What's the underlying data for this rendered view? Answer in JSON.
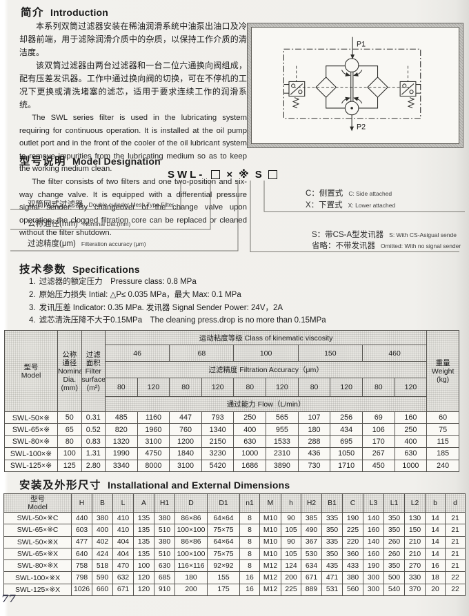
{
  "page": {
    "number": "77"
  },
  "intro": {
    "title_zh": "简介",
    "title_en": "Introduction",
    "zh_p1": "本系列双筒过滤器安装在稀油润滑系统中油泵出油口及冷却器前端，用于滤除润滑介质中的杂质，以保持工作介质的清洁度。",
    "zh_p2": "该双筒过滤器由两台过滤器和一台二位六通换向阀组成，配有压差发讯器。工作中通过换向阀的切换，可在不停机的工况下更换或清洗堵塞的滤芯，适用于要求连续工作的润滑系统。",
    "en_p1": "The SWL series filter is used in the lubricating system requiring for continuous operation. It is installed at the oil pump outlet port and in the front of the cooler of the oil lubricant system to remove impurities from the lubricating medium so as to keep the working medium clean.",
    "en_p2": "The filter consists of two filters and one two-position and six-way change valve. It is equipped with a differential pressure signal sender. By changeover of the change valve  upon operation, the clogged filtration core can be replaced or cleaned without the filter shutdown."
  },
  "diagram": {
    "p1": "P1",
    "p2": "P2"
  },
  "designation": {
    "title_zh": "型号说明",
    "title_en": "Model Designation",
    "code_prefix": "SWL-",
    "code_x": "×",
    "code_ref": "※",
    "code_s": "S",
    "left_rows": [
      {
        "zh": "双筒网式过滤器",
        "en": "Double cylinder Mesh Type Filter"
      },
      {
        "zh": "公称通径(mm)",
        "en": "Nominal Dia.(mm)"
      },
      {
        "zh": "过滤精度(μm)",
        "en": "Filteration accuracy (μm)"
      }
    ],
    "right_rows": [
      {
        "zh": "C：侧置式",
        "en": "C: Side attached"
      },
      {
        "zh": "X：下置式",
        "en": "X: Lower attached"
      },
      {
        "zh": "S：带CS-A型发讯器",
        "en": "S: With CS-Asigual sende"
      },
      {
        "zh": "省略：不带发讯器",
        "en": "Omitted: With no signal sender"
      }
    ]
  },
  "specs": {
    "title_zh": "技术参数",
    "title_en": "Specifications",
    "items": [
      {
        "num": "1.",
        "text": "过滤器的额定压力　Pressure class: 0.8 MPa"
      },
      {
        "num": "2.",
        "text": "原始压力损失  Intial: △P≤ 0.035 MPa，最大 Max: 0.1 MPa"
      },
      {
        "num": "3.",
        "text": "发讯压差 Indicator: 0.35 MPa. 发讯器 Signal Sender Power: 24V，2A"
      },
      {
        "num": "4.",
        "text": "滤芯清洗压降不大于0.15MPa　The cleaning press.drop is no more than 0.15MPa"
      }
    ]
  },
  "flow_table": {
    "model_header": "型号\nModel",
    "dia_header": "公称\n通径\nNominal\nDia.\n(mm)",
    "surface_header": "过滤\n面积\nFilter\nsurface\n(m²)",
    "weight_header": "重量\nWeight\n(kg)",
    "viscosity_label": "运动粘度等级  Class of  kinematic  viscosity",
    "viscosity_classes": [
      "46",
      "68",
      "100",
      "150",
      "460"
    ],
    "accuracy_label": "过滤精度  Filtration  Accuracy（μm）",
    "accuracies": [
      "80",
      "120",
      "80",
      "120",
      "80",
      "120",
      "80",
      "120",
      "80",
      "120"
    ],
    "flow_label": "通过能力  Flow（L/min）",
    "rows": [
      {
        "model": "SWL-50×※",
        "dia": "50",
        "surface": "0.31",
        "flows": [
          485,
          1160,
          447,
          793,
          250,
          565,
          107,
          256,
          69,
          160
        ],
        "weight": "60"
      },
      {
        "model": "SWL-65×※",
        "dia": "65",
        "surface": "0.52",
        "flows": [
          820,
          1960,
          760,
          1340,
          400,
          955,
          180,
          434,
          106,
          250
        ],
        "weight": "75"
      },
      {
        "model": "SWL-80×※",
        "dia": "80",
        "surface": "0.83",
        "flows": [
          1320,
          3100,
          1200,
          2150,
          630,
          1533,
          288,
          695,
          170,
          400
        ],
        "weight": "115"
      },
      {
        "model": "SWL-100×※",
        "dia": "100",
        "surface": "1.31",
        "flows": [
          1990,
          4750,
          1840,
          3230,
          1000,
          2310,
          436,
          1050,
          267,
          630
        ],
        "weight": "185"
      },
      {
        "model": "SWL-125×※",
        "dia": "125",
        "surface": "2.80",
        "flows": [
          3340,
          8000,
          3100,
          5420,
          1686,
          3890,
          730,
          1710,
          450,
          1000
        ],
        "weight": "240"
      }
    ]
  },
  "dim_table": {
    "title_zh": "安装及外形尺寸",
    "title_en": "Installational and External Dimensions",
    "model_header": "型号\nModel",
    "headers": [
      "H",
      "B",
      "L",
      "A",
      "H1",
      "D",
      "D1",
      "n1",
      "M",
      "h",
      "H2",
      "B1",
      "C",
      "L3",
      "L1",
      "L2",
      "b",
      "d"
    ],
    "rows": [
      [
        "SWL-50×※C",
        440,
        380,
        410,
        135,
        380,
        "86×86",
        "64×64",
        8,
        "M10",
        90,
        385,
        335,
        190,
        140,
        350,
        130,
        14,
        21
      ],
      [
        "SWL-65×※C",
        603,
        400,
        410,
        135,
        510,
        "100×100",
        "75×75",
        8,
        "M10",
        105,
        490,
        350,
        225,
        160,
        350,
        150,
        14,
        21
      ],
      [
        "SWL-50×※X",
        477,
        402,
        404,
        135,
        380,
        "86×86",
        "64×64",
        8,
        "M10",
        90,
        367,
        335,
        220,
        140,
        260,
        210,
        14,
        21
      ],
      [
        "SWL-65×※X",
        640,
        424,
        404,
        135,
        510,
        "100×100",
        "75×75",
        8,
        "M10",
        105,
        530,
        350,
        360,
        160,
        260,
        210,
        14,
        21
      ],
      [
        "SWL-80×※X",
        758,
        518,
        470,
        100,
        630,
        "116×116",
        "92×92",
        8,
        "M12",
        124,
        634,
        435,
        433,
        190,
        350,
        270,
        16,
        21
      ],
      [
        "SWL-100×※X",
        798,
        590,
        632,
        120,
        685,
        "180",
        "155",
        16,
        "M12",
        200,
        671,
        471,
        380,
        300,
        500,
        330,
        18,
        22
      ],
      [
        "SWL-125×※X",
        1026,
        660,
        671,
        120,
        910,
        "200",
        "175",
        16,
        "M12",
        225,
        889,
        531,
        560,
        300,
        540,
        370,
        20,
        22
      ]
    ]
  }
}
